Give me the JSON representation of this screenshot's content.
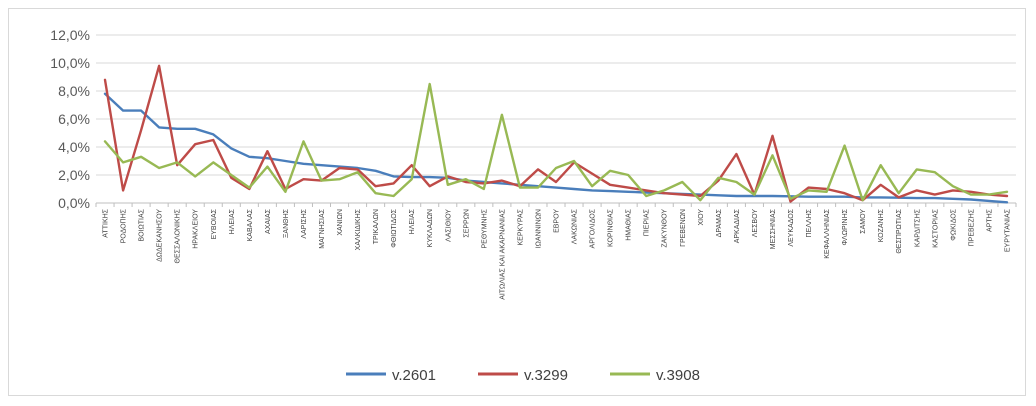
{
  "chart_data": {
    "type": "line",
    "title": "",
    "xlabel": "",
    "ylabel": "",
    "ylim": [
      0,
      12
    ],
    "yticks": [
      "0,0%",
      "2,0%",
      "4,0%",
      "6,0%",
      "8,0%",
      "10,0%",
      "12,0%"
    ],
    "grid": true,
    "legend_position": "bottom",
    "categories": [
      "ΑΤΤΙΚΗΣ",
      "ΡΟΔΟΠΗΣ",
      "ΒΟΙΩΤΙΑΣ",
      "ΔΩΔΕΚΑΝΗΣΟΥ",
      "ΘΕΣΣΑΛΟΝΙΚΗΣ",
      "ΗΡΑΚΛΕΙΟΥ",
      "ΕΥΒΟΙΑΣ",
      "ΗΛΕΙΑΣ",
      "ΚΑΒΑΛΑΣ",
      "ΑΧΑΙΑΣ",
      "ΞΑΝΘΗΣ",
      "ΛΑΡΙΣΗΣ",
      "ΜΑΓΝΗΣΙΑΣ",
      "ΧΑΝΙΩΝ",
      "ΧΑΛΚΙΔΙΚΗΣ",
      "ΤΡΙΚΑΛΩΝ",
      "ΦΘΙΩΤΙΔΟΣ",
      "ΗΛΕΙΑΣ",
      "ΚΥΚΛΑΔΩΝ",
      "ΛΑΣΙΘΙΟΥ",
      "ΣΕΡΡΩΝ",
      "ΡΕΘΥΜΝΗΣ",
      "ΑΙΤΩΛΙΑΣ ΚΑΙ ΑΚΑΡΝΑΝΙΑΣ",
      "ΚΕΡΚΥΡΑΣ",
      "ΙΩΑΝΝΙΝΩΝ",
      "ΕΒΡΟΥ",
      "ΛΑΚΩΝΙΑΣ",
      "ΑΡΓΟΛΙΔΟΣ",
      "ΚΟΡΙΝΘΙΑΣ",
      "ΗΜΑΘΙΑΣ",
      "ΠΙΕΡΙΑΣ",
      "ΖΑΚΥΝΘΟΥ",
      "ΓΡΕΒΕΝΩΝ",
      "ΧΙΟΥ",
      "ΔΡΑΜΑΣ",
      "ΑΡΚΑΔΙΑΣ",
      "ΛΕΣΒΟΥ",
      "ΜΕΣΣΗΝΙΑΣ",
      "ΛΕΥΚΑΔΟΣ",
      "ΠΕΛΛΗΣ",
      "ΚΕΦΑΛΛΗΝΙΑΣ",
      "ΦΛΩΡΙΝΗΣ",
      "ΣΑΜΟΥ",
      "ΚΟΖΑΝΗΣ",
      "ΘΕΣΠΡΩΤΙΑΣ",
      "ΚΑΡΔΙΤΣΗΣ",
      "ΚΑΣΤΟΡΙΑΣ",
      "ΦΩΚΙΔΟΣ",
      "ΠΡΕΒΕΖΗΣ",
      "ΑΡΤΗΣ",
      "ΕΥΡΥΤΑΝΙΑΣ"
    ],
    "series": [
      {
        "name": "v.2601",
        "color": "#4a7ebb",
        "values": [
          7.8,
          6.6,
          6.6,
          5.4,
          5.3,
          5.3,
          4.9,
          3.9,
          3.3,
          3.2,
          3.0,
          2.8,
          2.7,
          2.6,
          2.5,
          2.3,
          1.9,
          1.85,
          1.85,
          1.8,
          1.6,
          1.5,
          1.4,
          1.3,
          1.2,
          1.1,
          1.0,
          0.9,
          0.85,
          0.8,
          0.75,
          0.7,
          0.65,
          0.6,
          0.55,
          0.5,
          0.5,
          0.5,
          0.48,
          0.45,
          0.45,
          0.45,
          0.4,
          0.4,
          0.38,
          0.35,
          0.35,
          0.3,
          0.25,
          0.15,
          0.05
        ]
      },
      {
        "name": "v.3299",
        "color": "#be4b48",
        "values": [
          8.8,
          0.9,
          5.2,
          9.8,
          2.7,
          4.2,
          4.5,
          1.8,
          1.0,
          3.7,
          1.0,
          1.7,
          1.6,
          2.5,
          2.4,
          1.2,
          1.4,
          2.7,
          1.2,
          1.9,
          1.5,
          1.4,
          1.6,
          1.2,
          2.4,
          1.5,
          2.9,
          2.1,
          1.3,
          1.1,
          0.9,
          0.7,
          0.6,
          0.5,
          1.6,
          3.5,
          0.6,
          4.8,
          0.1,
          1.1,
          1.0,
          0.7,
          0.2,
          1.3,
          0.4,
          0.9,
          0.6,
          0.9,
          0.8,
          0.6,
          0.5
        ]
      },
      {
        "name": "v.3908",
        "color": "#98b954",
        "values": [
          4.4,
          2.9,
          3.3,
          2.5,
          2.9,
          1.9,
          2.9,
          2.0,
          1.1,
          2.6,
          0.8,
          4.4,
          1.6,
          1.7,
          2.2,
          0.7,
          0.5,
          1.7,
          8.5,
          1.3,
          1.7,
          1.0,
          6.3,
          1.1,
          1.1,
          2.5,
          3.0,
          1.2,
          2.3,
          2.0,
          0.5,
          0.9,
          1.5,
          0.2,
          1.8,
          1.5,
          0.6,
          3.4,
          0.3,
          0.9,
          0.8,
          4.1,
          0.2,
          2.7,
          0.7,
          2.4,
          2.2,
          1.2,
          0.6,
          0.6,
          0.8
        ]
      }
    ]
  }
}
